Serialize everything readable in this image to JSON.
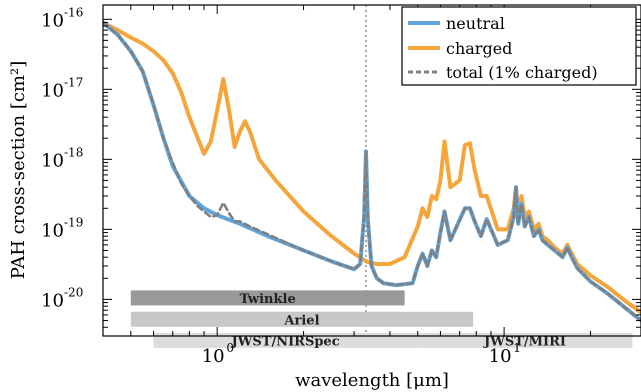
{
  "chart_data": {
    "type": "line",
    "xlabel": "wavelength [μm]",
    "ylabel": "PAH cross-section [cm²]",
    "xscale": "log",
    "yscale": "log",
    "xlim": [
      0.4,
      30
    ],
    "ylim": [
      3e-21,
      1.6e-16
    ],
    "x_ticks": [
      {
        "value": 1,
        "label": "10",
        "exp": "0"
      },
      {
        "value": 10,
        "label": "10",
        "exp": "1"
      }
    ],
    "y_ticks": [
      {
        "value": 1e-20,
        "label": "10",
        "exp": "-20"
      },
      {
        "value": 1e-19,
        "label": "10",
        "exp": "-19"
      },
      {
        "value": 1e-18,
        "label": "10",
        "exp": "-18"
      },
      {
        "value": 1e-17,
        "label": "10",
        "exp": "-17"
      },
      {
        "value": 1e-16,
        "label": "10",
        "exp": "-16"
      }
    ],
    "legend_position": "top-right",
    "vline": {
      "x": 3.3,
      "color": "#aaaaaa"
    },
    "series": [
      {
        "name": "neutral",
        "color": "#5fa5dc",
        "style": "solid",
        "x": [
          0.4,
          0.45,
          0.5,
          0.55,
          0.6,
          0.65,
          0.7,
          0.8,
          0.9,
          1.0,
          1.2,
          1.5,
          2.0,
          2.5,
          3.0,
          3.15,
          3.25,
          3.3,
          3.35,
          3.45,
          3.6,
          3.8,
          4.2,
          4.8,
          5.0,
          5.2,
          5.4,
          5.6,
          5.8,
          6.0,
          6.2,
          6.5,
          6.9,
          7.3,
          7.6,
          7.9,
          8.3,
          8.7,
          9.5,
          10.3,
          10.8,
          11.0,
          11.2,
          11.5,
          11.8,
          12.2,
          12.7,
          13.2,
          13.6,
          14.2,
          15,
          16,
          16.6,
          17.2,
          18,
          20,
          23,
          26,
          30
        ],
        "y": [
          9e-17,
          6e-17,
          3.5e-17,
          1.8e-17,
          6e-18,
          2e-18,
          8e-19,
          3e-19,
          2e-19,
          1.6e-19,
          1.2e-19,
          8e-20,
          5e-20,
          3.5e-20,
          2.7e-20,
          3.2e-20,
          1.5e-19,
          1.3e-18,
          1.4e-19,
          3e-20,
          2e-20,
          1.7e-20,
          1.6e-20,
          1.7e-20,
          3e-20,
          4.5e-20,
          3e-20,
          5e-20,
          4e-20,
          9e-20,
          1.8e-19,
          7e-20,
          1.2e-19,
          2e-19,
          2e-19,
          1.3e-19,
          8e-20,
          1.4e-19,
          6e-20,
          7e-20,
          1.5e-19,
          4e-19,
          1.2e-19,
          2.3e-19,
          1.1e-19,
          1.5e-19,
          8e-20,
          1e-19,
          7e-20,
          6e-20,
          5e-20,
          4e-20,
          5.5e-20,
          4e-20,
          2.8e-20,
          1.8e-20,
          1.2e-20,
          8e-21,
          5e-21
        ]
      },
      {
        "name": "charged",
        "color": "#f5a53a",
        "style": "solid",
        "x": [
          0.4,
          0.45,
          0.5,
          0.55,
          0.6,
          0.65,
          0.7,
          0.75,
          0.8,
          0.9,
          0.95,
          1.0,
          1.05,
          1.1,
          1.15,
          1.2,
          1.25,
          1.3,
          1.4,
          1.6,
          2.0,
          2.5,
          3.0,
          3.2,
          3.35,
          3.6,
          4.0,
          4.5,
          5.0,
          5.2,
          5.4,
          5.6,
          5.8,
          6.0,
          6.2,
          6.5,
          7.0,
          7.3,
          7.6,
          7.9,
          8.3,
          8.7,
          9.5,
          10.3,
          10.8,
          11.0,
          11.2,
          11.5,
          11.8,
          12.2,
          12.7,
          13.2,
          13.6,
          14.2,
          15,
          16,
          16.6,
          17.2,
          18,
          20,
          23,
          26,
          30
        ],
        "y": [
          9e-17,
          7e-17,
          5.5e-17,
          4.5e-17,
          3.5e-17,
          2.6e-17,
          1.7e-17,
          9e-18,
          4e-18,
          1.2e-18,
          1.8e-18,
          5e-18,
          1.4e-17,
          5e-18,
          1.5e-18,
          2.5e-18,
          3.5e-18,
          2.5e-18,
          1e-18,
          5e-19,
          1.8e-19,
          8e-20,
          4.5e-20,
          3.8e-20,
          3.4e-20,
          3.2e-20,
          3.2e-20,
          4e-20,
          1.1e-19,
          2e-19,
          1.5e-19,
          3e-19,
          2.7e-19,
          5e-19,
          1.8e-18,
          4e-19,
          5e-19,
          1.6e-18,
          1.7e-18,
          7e-19,
          3e-19,
          3e-19,
          1e-19,
          1e-19,
          2e-19,
          4e-19,
          1.6e-19,
          3e-19,
          1.5e-19,
          1.8e-19,
          1e-19,
          1.2e-19,
          8e-20,
          7e-20,
          5.5e-20,
          4.5e-20,
          6e-20,
          4.5e-20,
          3.2e-20,
          2.2e-20,
          1.5e-20,
          1e-20,
          6.5e-21
        ]
      },
      {
        "name": "total (1% charged)",
        "color": "#808080",
        "style": "dashed",
        "x": [
          0.4,
          0.45,
          0.5,
          0.55,
          0.6,
          0.65,
          0.7,
          0.75,
          0.8,
          0.85,
          0.9,
          0.95,
          1.0,
          1.05,
          1.1,
          1.15,
          1.2,
          1.3,
          1.5,
          2.0,
          2.5,
          3.0,
          3.15,
          3.25,
          3.3,
          3.35,
          3.45,
          3.6,
          3.8,
          4.2,
          4.8,
          5.0,
          5.2,
          5.4,
          5.6,
          5.8,
          6.0,
          6.2,
          6.5,
          6.9,
          7.3,
          7.6,
          7.9,
          8.3,
          8.7,
          9.5,
          10.3,
          10.8,
          11.0,
          11.2,
          11.5,
          11.8,
          12.2,
          12.7,
          13.2,
          13.6,
          14.2,
          15,
          16,
          16.6,
          17.2,
          18,
          20,
          23,
          26,
          30
        ],
        "y": [
          9e-17,
          6e-17,
          3.5e-17,
          1.8e-17,
          6e-18,
          2e-18,
          9e-19,
          4.5e-19,
          3e-19,
          2.2e-19,
          1.8e-19,
          1.5e-19,
          1.6e-19,
          2.4e-19,
          1.7e-19,
          1.3e-19,
          1.3e-19,
          1.1e-19,
          8.5e-20,
          5e-20,
          3.5e-20,
          2.7e-20,
          3.2e-20,
          1.5e-19,
          1.3e-18,
          1.4e-19,
          3e-20,
          2e-20,
          1.7e-20,
          1.6e-20,
          1.7e-20,
          3e-20,
          4.5e-20,
          3e-20,
          5e-20,
          4e-20,
          9e-20,
          1.8e-19,
          7e-20,
          1.2e-19,
          2e-19,
          2e-19,
          1.3e-19,
          8e-20,
          1.4e-19,
          6e-20,
          7e-20,
          1.5e-19,
          4e-19,
          1.2e-19,
          2.3e-19,
          1.1e-19,
          1.5e-19,
          8e-20,
          1e-19,
          7e-20,
          6e-20,
          5e-20,
          4e-20,
          5.5e-20,
          4e-20,
          2.8e-20,
          1.8e-20,
          1.2e-20,
          8e-21,
          5e-21
        ]
      }
    ],
    "bands": [
      {
        "label": "Twinkle",
        "x0": 0.5,
        "x1": 4.5,
        "y": 1.05e-20,
        "color": "#999999"
      },
      {
        "label": "Ariel",
        "x0": 0.5,
        "x1": 7.8,
        "y": 5.2e-21,
        "color": "#c8c8c8"
      },
      {
        "label": "JWST/NIRSpec",
        "x0": 0.6,
        "x1": 5.0,
        "y": 2.6e-21,
        "color": "#dcdcdc"
      },
      {
        "label": "JWST/MIRI",
        "x0": 5.0,
        "x1": 28.0,
        "y": 2.6e-21,
        "color": "#dcdcdc"
      }
    ]
  }
}
